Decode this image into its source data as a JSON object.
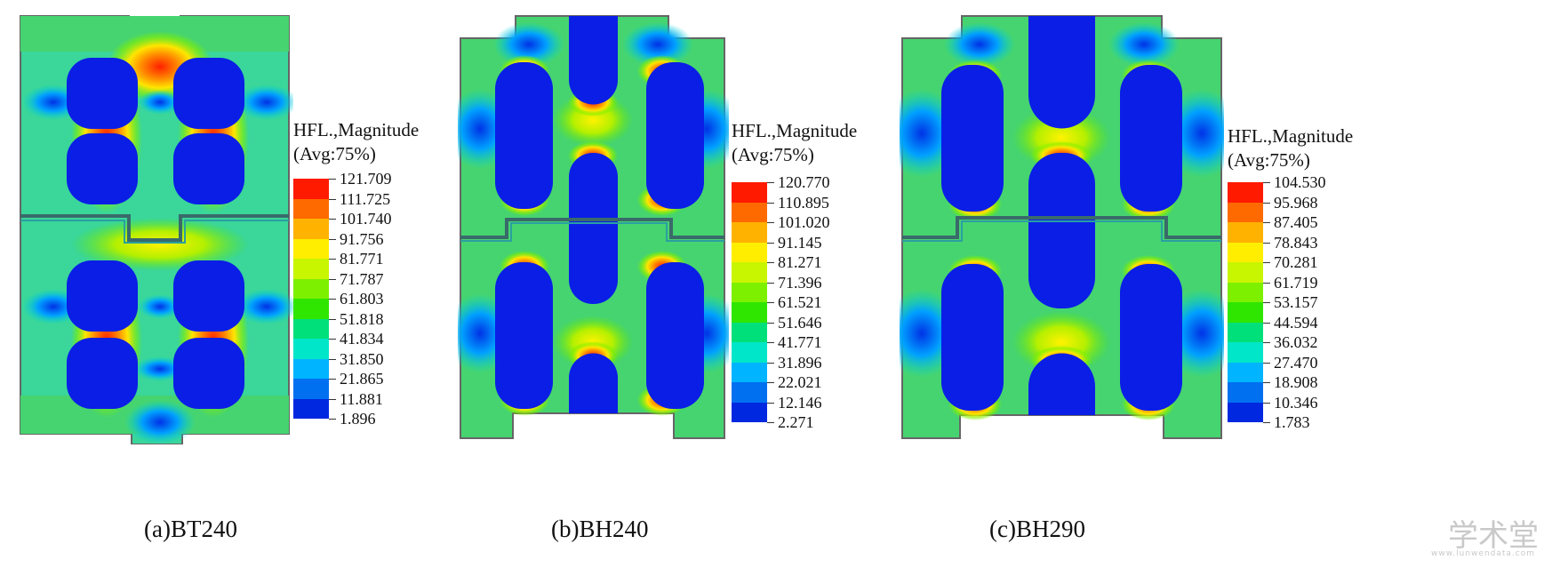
{
  "panels": [
    {
      "id": "a",
      "caption": "(a)BT240",
      "legend_title_1": "HFL.,Magnitude",
      "legend_title_2": "(Avg:75%)",
      "legend_values": [
        "121.709",
        "111.725",
        "101.740",
        "91.756",
        "81.771",
        "71.787",
        "61.803",
        "51.818",
        "41.834",
        "31.850",
        "21.865",
        "11.881",
        "1.896"
      ]
    },
    {
      "id": "b",
      "caption": "(b)BH240",
      "legend_title_1": "HFL.,Magnitude",
      "legend_title_2": "(Avg:75%)",
      "legend_values": [
        "120.770",
        "110.895",
        "101.020",
        "91.145",
        "81.271",
        "71.396",
        "61.521",
        "51.646",
        "41.771",
        "31.896",
        "22.021",
        "12.146",
        "2.271"
      ]
    },
    {
      "id": "c",
      "caption": "(c)BH290",
      "legend_title_1": "HFL.,Magnitude",
      "legend_title_2": "(Avg:75%)",
      "legend_values": [
        "104.530",
        "95.968",
        "87.405",
        "78.843",
        "70.281",
        "61.719",
        "53.157",
        "44.594",
        "36.032",
        "27.470",
        "18.908",
        "10.346",
        "1.783"
      ]
    }
  ],
  "legend_colors": [
    "#ff1a00",
    "#ff6a00",
    "#ffb200",
    "#ffee00",
    "#c8f500",
    "#7df000",
    "#2ee600",
    "#00e07a",
    "#00e6c8",
    "#00b4ff",
    "#0070f0",
    "#0028e0",
    "#0000c8"
  ],
  "colors": {
    "hole": "#0a1ee6",
    "field": "#2fd8a0",
    "hot": "#ff2a00"
  },
  "watermark": "学术堂",
  "watermark_sub": "www.lunwendata.com"
}
